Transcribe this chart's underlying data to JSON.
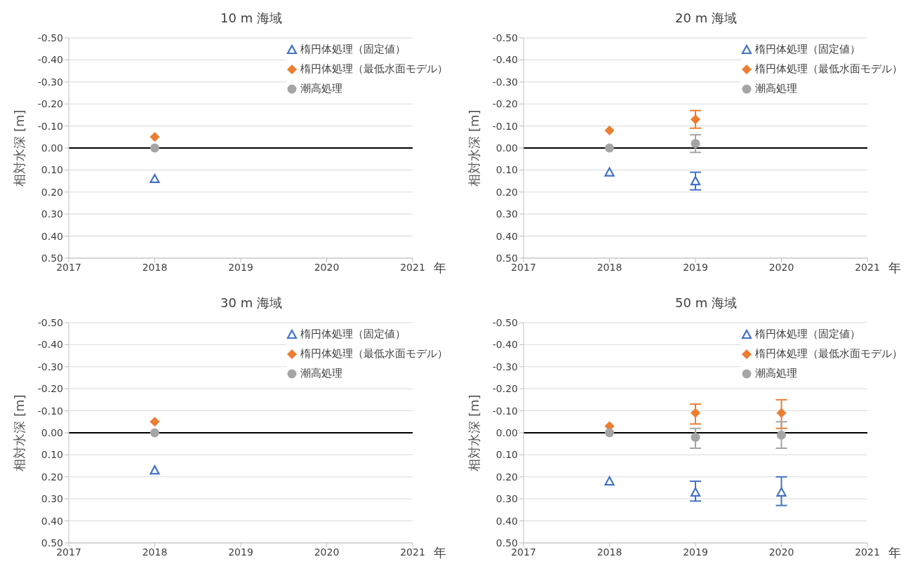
{
  "chart_data": [
    {
      "type": "scatter",
      "title": "10 m 海域",
      "xlabel": "年",
      "ylabel": "相対水深 [m]",
      "x": [
        2018
      ],
      "series": [
        {
          "name": "楕円体処理（固定値）",
          "color": "#4472c4",
          "marker": "triangle",
          "values": [
            0.14
          ]
        },
        {
          "name": "楕円体処理（最低水面モデル）",
          "color": "#ed7d31",
          "marker": "diamond",
          "values": [
            -0.05
          ]
        },
        {
          "name": "潮高処理",
          "color": "#a5a5a5",
          "marker": "circle",
          "values": [
            0.0
          ]
        }
      ],
      "xlim": [
        2017,
        2021
      ],
      "xticks": [
        2017,
        2018,
        2019,
        2020,
        2021
      ],
      "ylim": [
        0.5,
        -0.5
      ],
      "yticks": [
        {
          "value": -0.5,
          "label": "-0.50"
        },
        {
          "value": -0.4,
          "label": "-0.40"
        },
        {
          "value": -0.3,
          "label": "-0.30"
        },
        {
          "value": -0.2,
          "label": "-0.20"
        },
        {
          "value": -0.1,
          "label": "-0.10"
        },
        {
          "value": 0,
          "label": "0.00"
        },
        {
          "value": 0.1,
          "label": "0.10"
        },
        {
          "value": 0.2,
          "label": "0.20"
        },
        {
          "value": 0.3,
          "label": "0.30"
        },
        {
          "value": 0.4,
          "label": "0.40"
        },
        {
          "value": 0.5,
          "label": "0.50"
        }
      ],
      "ref_lines": [
        {
          "axis": "y",
          "value": 0,
          "color": "#000000"
        }
      ],
      "grid": "y",
      "legend": "top right"
    },
    {
      "type": "scatter",
      "title": "20 m 海域",
      "xlabel": "年",
      "ylabel": "相対水深 [m]",
      "x": [
        2018,
        2019
      ],
      "series": [
        {
          "name": "楕円体処理（固定値）",
          "color": "#4472c4",
          "marker": "triangle",
          "values": [
            0.11,
            0.15
          ],
          "errors": [
            null,
            [
              0.11,
              0.19
            ]
          ]
        },
        {
          "name": "楕円体処理（最低水面モデル）",
          "color": "#ed7d31",
          "marker": "diamond",
          "values": [
            -0.08,
            -0.13
          ],
          "errors": [
            null,
            [
              -0.17,
              -0.09
            ]
          ]
        },
        {
          "name": "潮高処理",
          "color": "#a5a5a5",
          "marker": "circle",
          "values": [
            0.0,
            -0.02
          ],
          "errors": [
            null,
            [
              -0.06,
              0.02
            ]
          ]
        }
      ],
      "xlim": [
        2017,
        2021
      ],
      "xticks": [
        2017,
        2018,
        2019,
        2020,
        2021
      ],
      "ylim": [
        0.5,
        -0.5
      ],
      "yticks": [
        {
          "value": -0.5,
          "label": "-0.50"
        },
        {
          "value": -0.4,
          "label": "-0.40"
        },
        {
          "value": -0.3,
          "label": "-0.30"
        },
        {
          "value": -0.2,
          "label": "-0.20"
        },
        {
          "value": -0.1,
          "label": "-0.10"
        },
        {
          "value": 0,
          "label": "0.00"
        },
        {
          "value": 0.1,
          "label": "0.10"
        },
        {
          "value": 0.2,
          "label": "0.20"
        },
        {
          "value": 0.3,
          "label": "0.30"
        },
        {
          "value": 0.4,
          "label": "0.40"
        },
        {
          "value": 0.5,
          "label": "0.50"
        }
      ],
      "ref_lines": [
        {
          "axis": "y",
          "value": 0,
          "color": "#000000"
        }
      ],
      "grid": "y",
      "legend": "top right"
    },
    {
      "type": "scatter",
      "title": "30 m 海域",
      "xlabel": "年",
      "ylabel": "相対水深 [m]",
      "x": [
        2018
      ],
      "series": [
        {
          "name": "楕円体処理（固定値）",
          "color": "#4472c4",
          "marker": "triangle",
          "values": [
            0.17
          ]
        },
        {
          "name": "楕円体処理（最低水面モデル）",
          "color": "#ed7d31",
          "marker": "diamond",
          "values": [
            -0.05
          ]
        },
        {
          "name": "潮高処理",
          "color": "#a5a5a5",
          "marker": "circle",
          "values": [
            0.0
          ]
        }
      ],
      "xlim": [
        2017,
        2021
      ],
      "xticks": [
        2017,
        2018,
        2019,
        2020,
        2021
      ],
      "ylim": [
        0.5,
        -0.5
      ],
      "yticks": [
        {
          "value": -0.5,
          "label": "-0.50"
        },
        {
          "value": -0.4,
          "label": "-0.40"
        },
        {
          "value": -0.3,
          "label": "-0.30"
        },
        {
          "value": -0.2,
          "label": "-0.20"
        },
        {
          "value": -0.1,
          "label": "-0.10"
        },
        {
          "value": 0,
          "label": "0.00"
        },
        {
          "value": 0.1,
          "label": "0.10"
        },
        {
          "value": 0.2,
          "label": "0.20"
        },
        {
          "value": 0.3,
          "label": "0.30"
        },
        {
          "value": 0.4,
          "label": "0.40"
        },
        {
          "value": 0.5,
          "label": "0.50"
        }
      ],
      "ref_lines": [
        {
          "axis": "y",
          "value": 0,
          "color": "#000000"
        }
      ],
      "grid": "y",
      "legend": "top right"
    },
    {
      "type": "scatter",
      "title": "50 m 海域",
      "xlabel": "年",
      "ylabel": "相対水深 [m]",
      "x": [
        2018,
        2019,
        2020
      ],
      "series": [
        {
          "name": "楕円体処理（固定値）",
          "color": "#4472c4",
          "marker": "triangle",
          "values": [
            0.22,
            0.27,
            0.27
          ],
          "errors": [
            null,
            [
              0.22,
              0.31
            ],
            [
              0.2,
              0.33
            ]
          ]
        },
        {
          "name": "楕円体処理（最低水面モデル）",
          "color": "#ed7d31",
          "marker": "diamond",
          "values": [
            -0.03,
            -0.09,
            -0.09
          ],
          "errors": [
            null,
            [
              -0.13,
              -0.04
            ],
            [
              -0.15,
              -0.02
            ]
          ]
        },
        {
          "name": "潮高処理",
          "color": "#a5a5a5",
          "marker": "circle",
          "values": [
            0.0,
            0.02,
            0.01
          ],
          "errors": [
            null,
            [
              -0.02,
              0.07
            ],
            [
              -0.05,
              0.07
            ]
          ]
        }
      ],
      "xlim": [
        2017,
        2021
      ],
      "xticks": [
        2017,
        2018,
        2019,
        2020,
        2021
      ],
      "ylim": [
        0.5,
        -0.5
      ],
      "yticks": [
        {
          "value": -0.5,
          "label": "-0.50"
        },
        {
          "value": -0.4,
          "label": "-0.40"
        },
        {
          "value": -0.3,
          "label": "-0.30"
        },
        {
          "value": -0.2,
          "label": "-0.20"
        },
        {
          "value": -0.1,
          "label": "-0.10"
        },
        {
          "value": 0,
          "label": "0.00"
        },
        {
          "value": 0.1,
          "label": "0.10"
        },
        {
          "value": 0.2,
          "label": "0.20"
        },
        {
          "value": 0.3,
          "label": "0.30"
        },
        {
          "value": 0.4,
          "label": "0.40"
        },
        {
          "value": 0.5,
          "label": "0.50"
        }
      ],
      "ref_lines": [
        {
          "axis": "y",
          "value": 0,
          "color": "#000000"
        }
      ],
      "grid": "y",
      "legend": "top right"
    }
  ]
}
